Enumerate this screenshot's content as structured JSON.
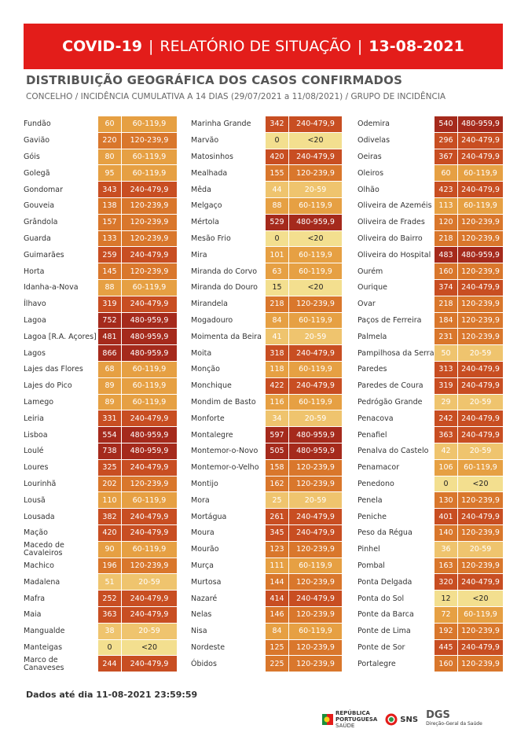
{
  "header": {
    "title_left": "COVID-19",
    "title_mid": "RELATÓRIO DE SITUAÇÃO",
    "title_right": "13-08-2021",
    "separator": "|"
  },
  "section": {
    "title": "DISTRIBUIÇÃO GEOGRÁFICA DOS CASOS CONFIRMADOS",
    "subtitle": "CONCELHO / INCIDÊNCIA CUMULATIVA A 14 DIAS (29/07/2021 a 11/08/2021) / GRUPO DE INCIDÊNCIA"
  },
  "group_colors": {
    "<20": "#f3df8f",
    "20-59": "#efc46e",
    "60-119,9": "#e6a043",
    "120-239,9": "#d9772c",
    "240-479,9": "#c84e22",
    "480-959,9": "#a52a1c"
  },
  "columns": [
    [
      [
        "Fundão",
        60,
        "60-119,9"
      ],
      [
        "Gavião",
        220,
        "120-239,9"
      ],
      [
        "Góis",
        80,
        "60-119,9"
      ],
      [
        "Golegã",
        95,
        "60-119,9"
      ],
      [
        "Gondomar",
        343,
        "240-479,9"
      ],
      [
        "Gouveia",
        138,
        "120-239,9"
      ],
      [
        "Grândola",
        157,
        "120-239,9"
      ],
      [
        "Guarda",
        133,
        "120-239,9"
      ],
      [
        "Guimarães",
        259,
        "240-479,9"
      ],
      [
        "Horta",
        145,
        "120-239,9"
      ],
      [
        "Idanha-a-Nova",
        88,
        "60-119,9"
      ],
      [
        "Ílhavo",
        319,
        "240-479,9"
      ],
      [
        "Lagoa",
        752,
        "480-959,9"
      ],
      [
        "Lagoa [R.A. Açores]",
        481,
        "480-959,9"
      ],
      [
        "Lagos",
        866,
        "480-959,9"
      ],
      [
        "Lajes das Flores",
        68,
        "60-119,9"
      ],
      [
        "Lajes do Pico",
        89,
        "60-119,9"
      ],
      [
        "Lamego",
        89,
        "60-119,9"
      ],
      [
        "Leiria",
        331,
        "240-479,9"
      ],
      [
        "Lisboa",
        554,
        "480-959,9"
      ],
      [
        "Loulé",
        738,
        "480-959,9"
      ],
      [
        "Loures",
        325,
        "240-479,9"
      ],
      [
        "Lourinhã",
        202,
        "120-239,9"
      ],
      [
        "Lousã",
        110,
        "60-119,9"
      ],
      [
        "Lousada",
        382,
        "240-479,9"
      ],
      [
        "Mação",
        420,
        "240-479,9"
      ],
      [
        "Macedo de Cavaleiros",
        90,
        "60-119,9"
      ],
      [
        "Machico",
        196,
        "120-239,9"
      ],
      [
        "Madalena",
        51,
        "20-59"
      ],
      [
        "Mafra",
        252,
        "240-479,9"
      ],
      [
        "Maia",
        363,
        "240-479,9"
      ],
      [
        "Mangualde",
        38,
        "20-59"
      ],
      [
        "Manteigas",
        0,
        "<20"
      ],
      [
        "Marco de Canaveses",
        244,
        "240-479,9"
      ]
    ],
    [
      [
        "Marinha Grande",
        342,
        "240-479,9"
      ],
      [
        "Marvão",
        0,
        "<20"
      ],
      [
        "Matosinhos",
        420,
        "240-479,9"
      ],
      [
        "Mealhada",
        155,
        "120-239,9"
      ],
      [
        "Mêda",
        44,
        "20-59"
      ],
      [
        "Melgaço",
        88,
        "60-119,9"
      ],
      [
        "Mértola",
        529,
        "480-959,9"
      ],
      [
        "Mesão Frio",
        0,
        "<20"
      ],
      [
        "Mira",
        101,
        "60-119,9"
      ],
      [
        "Miranda do Corvo",
        63,
        "60-119,9"
      ],
      [
        "Miranda do Douro",
        15,
        "<20"
      ],
      [
        "Mirandela",
        218,
        "120-239,9"
      ],
      [
        "Mogadouro",
        84,
        "60-119,9"
      ],
      [
        "Moimenta da Beira",
        41,
        "20-59"
      ],
      [
        "Moita",
        318,
        "240-479,9"
      ],
      [
        "Monção",
        118,
        "60-119,9"
      ],
      [
        "Monchique",
        422,
        "240-479,9"
      ],
      [
        "Mondim de Basto",
        116,
        "60-119,9"
      ],
      [
        "Monforte",
        34,
        "20-59"
      ],
      [
        "Montalegre",
        597,
        "480-959,9"
      ],
      [
        "Montemor-o-Novo",
        505,
        "480-959,9"
      ],
      [
        "Montemor-o-Velho",
        158,
        "120-239,9"
      ],
      [
        "Montijo",
        162,
        "120-239,9"
      ],
      [
        "Mora",
        25,
        "20-59"
      ],
      [
        "Mortágua",
        261,
        "240-479,9"
      ],
      [
        "Moura",
        345,
        "240-479,9"
      ],
      [
        "Mourão",
        123,
        "120-239,9"
      ],
      [
        "Murça",
        111,
        "60-119,9"
      ],
      [
        "Murtosa",
        144,
        "120-239,9"
      ],
      [
        "Nazaré",
        414,
        "240-479,9"
      ],
      [
        "Nelas",
        146,
        "120-239,9"
      ],
      [
        "Nisa",
        84,
        "60-119,9"
      ],
      [
        "Nordeste",
        125,
        "120-239,9"
      ],
      [
        "Óbidos",
        225,
        "120-239,9"
      ]
    ],
    [
      [
        "Odemira",
        540,
        "480-959,9"
      ],
      [
        "Odivelas",
        296,
        "240-479,9"
      ],
      [
        "Oeiras",
        367,
        "240-479,9"
      ],
      [
        "Oleiros",
        60,
        "60-119,9"
      ],
      [
        "Olhão",
        423,
        "240-479,9"
      ],
      [
        "Oliveira de Azeméis",
        113,
        "60-119,9"
      ],
      [
        "Oliveira de Frades",
        120,
        "120-239,9"
      ],
      [
        "Oliveira do Bairro",
        218,
        "120-239,9"
      ],
      [
        "Oliveira do Hospital",
        483,
        "480-959,9"
      ],
      [
        "Ourém",
        160,
        "120-239,9"
      ],
      [
        "Ourique",
        374,
        "240-479,9"
      ],
      [
        "Ovar",
        218,
        "120-239,9"
      ],
      [
        "Paços de Ferreira",
        184,
        "120-239,9"
      ],
      [
        "Palmela",
        231,
        "120-239,9"
      ],
      [
        "Pampilhosa da Serra",
        50,
        "20-59"
      ],
      [
        "Paredes",
        313,
        "240-479,9"
      ],
      [
        "Paredes de Coura",
        319,
        "240-479,9"
      ],
      [
        "Pedrógão Grande",
        29,
        "20-59"
      ],
      [
        "Penacova",
        242,
        "240-479,9"
      ],
      [
        "Penafiel",
        363,
        "240-479,9"
      ],
      [
        "Penalva do Castelo",
        42,
        "20-59"
      ],
      [
        "Penamacor",
        106,
        "60-119,9"
      ],
      [
        "Penedono",
        0,
        "<20"
      ],
      [
        "Penela",
        130,
        "120-239,9"
      ],
      [
        "Peniche",
        401,
        "240-479,9"
      ],
      [
        "Peso da Régua",
        140,
        "120-239,9"
      ],
      [
        "Pinhel",
        36,
        "20-59"
      ],
      [
        "Pombal",
        163,
        "120-239,9"
      ],
      [
        "Ponta Delgada",
        320,
        "240-479,9"
      ],
      [
        "Ponta do Sol",
        12,
        "<20"
      ],
      [
        "Ponte da Barca",
        72,
        "60-119,9"
      ],
      [
        "Ponte de Lima",
        192,
        "120-239,9"
      ],
      [
        "Ponte de Sor",
        445,
        "240-479,9"
      ],
      [
        "Portalegre",
        160,
        "120-239,9"
      ]
    ]
  ],
  "footer": {
    "note": "Dados até dia 11-08-2021 23:59:59",
    "logo1_line1": "REPÚBLICA",
    "logo1_line2": "PORTUGUESA",
    "logo1_line3": "SAÚDE",
    "logo2": "SNS",
    "logo3": "DGS",
    "logo3_sub": "Direção-Geral da Saúde"
  }
}
